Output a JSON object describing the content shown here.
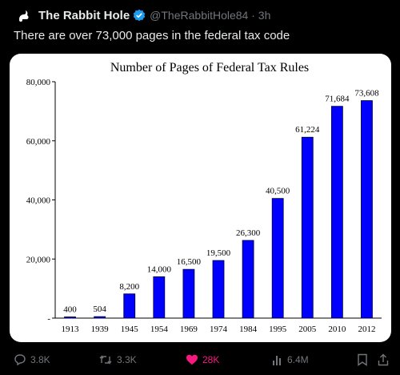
{
  "tweet": {
    "author_name": "The Rabbit Hole",
    "handle_time": "@TheRabbitHole84 · 3h",
    "text": "There are over 73,000 pages in the federal tax code"
  },
  "actions": {
    "replies": "3.8K",
    "retweets": "3.3K",
    "likes": "28K",
    "views": "6.4M"
  },
  "colors": {
    "bar": "#0000ff",
    "like": "#f91880",
    "verified": "#1d9bf0"
  },
  "chart_data": {
    "type": "bar",
    "title": "Number of Pages of Federal Tax Rules",
    "categories": [
      "1913",
      "1939",
      "1945",
      "1954",
      "1969",
      "1974",
      "1984",
      "1995",
      "2005",
      "2010",
      "2012"
    ],
    "values": [
      400,
      504,
      8200,
      14000,
      16500,
      19500,
      26300,
      40500,
      61224,
      71684,
      73608
    ],
    "labels": [
      "400",
      "504",
      "8,200",
      "14,000",
      "16,500",
      "19,500",
      "26,300",
      "40,500",
      "61,224",
      "71,684",
      "73,608"
    ],
    "yticks": [
      0,
      20000,
      40000,
      60000,
      80000
    ],
    "ytick_labels": [
      "-",
      "20,000",
      "40,000",
      "60,000",
      "80,000"
    ],
    "ylim": [
      0,
      80000
    ],
    "grid": false,
    "legend": "none"
  }
}
